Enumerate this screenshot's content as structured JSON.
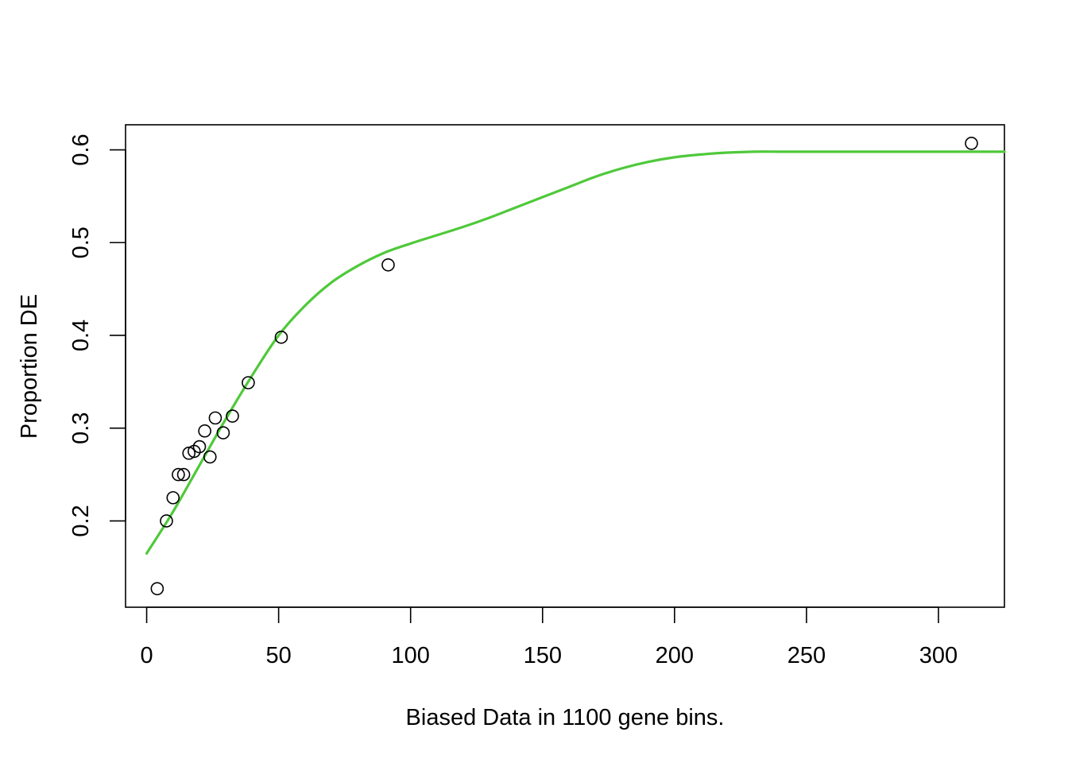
{
  "chart_data": {
    "type": "scatter",
    "title": "",
    "xlabel": "Biased Data in 1100 gene bins.",
    "ylabel": "Proportion DE",
    "xlim": [
      -8,
      325
    ],
    "ylim": [
      0.107,
      0.627
    ],
    "x_ticks": [
      0,
      50,
      100,
      150,
      200,
      250,
      300
    ],
    "x_tick_labels": [
      "0",
      "50",
      "100",
      "150",
      "200",
      "250",
      "300"
    ],
    "y_ticks": [
      0.2,
      0.3,
      0.4,
      0.5,
      0.6
    ],
    "y_tick_labels": [
      "0.2",
      "0.3",
      "0.4",
      "0.5",
      "0.6"
    ],
    "grid": false,
    "legend": "none",
    "colors": {
      "points": "#000000",
      "fit_line": "#4FC93A"
    },
    "series": [
      {
        "kind": "points",
        "x": [
          4,
          7.5,
          10,
          12,
          14,
          16,
          18,
          20,
          22,
          24,
          26,
          29,
          32.5,
          38.5,
          51,
          91.5,
          312.5
        ],
        "y": [
          0.127,
          0.2,
          0.225,
          0.25,
          0.25,
          0.273,
          0.275,
          0.28,
          0.297,
          0.269,
          0.311,
          0.295,
          0.313,
          0.349,
          0.398,
          0.476,
          0.607
        ]
      },
      {
        "kind": "line",
        "x": [
          0,
          10,
          20,
          30,
          40,
          50,
          60,
          70,
          80,
          90,
          100,
          110,
          120,
          130,
          140,
          150,
          160,
          170,
          180,
          190,
          200,
          210,
          220,
          230,
          240,
          250,
          260,
          270,
          280,
          290,
          300,
          310,
          325
        ],
        "y": [
          0.165,
          0.21,
          0.26,
          0.31,
          0.357,
          0.4,
          0.432,
          0.457,
          0.475,
          0.489,
          0.499,
          0.508,
          0.517,
          0.527,
          0.538,
          0.549,
          0.56,
          0.571,
          0.58,
          0.587,
          0.592,
          0.595,
          0.597,
          0.598,
          0.598,
          0.598,
          0.598,
          0.598,
          0.598,
          0.598,
          0.598,
          0.598,
          0.598
        ]
      }
    ]
  }
}
